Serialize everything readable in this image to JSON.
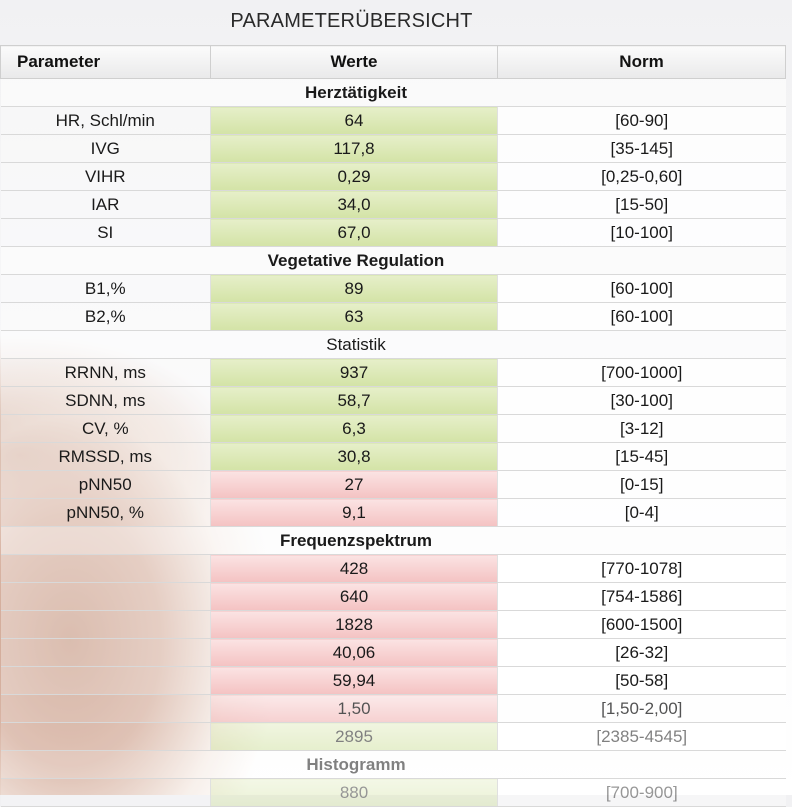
{
  "title": "PARAMETERÜBERSICHT",
  "header": {
    "param": "Parameter",
    "values": "Werte",
    "norm": "Norm"
  },
  "rows": [
    {
      "type": "section",
      "label": "Herztätigkeit"
    },
    {
      "type": "data",
      "name": "HR, Schl/min",
      "value": "64",
      "norm": "[60-90]",
      "status": "ok"
    },
    {
      "type": "data",
      "name": "IVG",
      "value": "117,8",
      "norm": "[35-145]",
      "status": "ok"
    },
    {
      "type": "data",
      "name": "VIHR",
      "value": "0,29",
      "norm": "[0,25-0,60]",
      "status": "ok"
    },
    {
      "type": "data",
      "name": "IAR",
      "value": "34,0",
      "norm": "[15-50]",
      "status": "ok"
    },
    {
      "type": "data",
      "name": "SI",
      "value": "67,0",
      "norm": "[10-100]",
      "status": "ok"
    },
    {
      "type": "section",
      "label": "Vegetative Regulation"
    },
    {
      "type": "data",
      "name": "B1,%",
      "value": "89",
      "norm": "[60-100]",
      "status": "ok"
    },
    {
      "type": "data",
      "name": "B2,%",
      "value": "63",
      "norm": "[60-100]",
      "status": "ok"
    },
    {
      "type": "section",
      "label": "Statistik",
      "light": true
    },
    {
      "type": "data",
      "name": "RRNN, ms",
      "value": "937",
      "norm": "[700-1000]",
      "status": "ok"
    },
    {
      "type": "data",
      "name": "SDNN, ms",
      "value": "58,7",
      "norm": "[30-100]",
      "status": "ok"
    },
    {
      "type": "data",
      "name": "CV, %",
      "value": "6,3",
      "norm": "[3-12]",
      "status": "ok"
    },
    {
      "type": "data",
      "name": "RMSSD, ms",
      "value": "30,8",
      "norm": "[15-45]",
      "status": "ok"
    },
    {
      "type": "data",
      "name": "pNN50",
      "value": "27",
      "norm": "[0-15]",
      "status": "bad"
    },
    {
      "type": "data",
      "name": "pNN50, %",
      "value": "9,1",
      "norm": "[0-4]",
      "status": "bad"
    },
    {
      "type": "section",
      "label": "Frequenzspektrum"
    },
    {
      "type": "data",
      "name": "",
      "value": "428",
      "norm": "[770-1078]",
      "status": "bad"
    },
    {
      "type": "data",
      "name": "",
      "value": "640",
      "norm": "[754-1586]",
      "status": "bad"
    },
    {
      "type": "data",
      "name": "",
      "value": "1828",
      "norm": "[600-1500]",
      "status": "bad"
    },
    {
      "type": "data",
      "name": "",
      "value": "40,06",
      "norm": "[26-32]",
      "status": "bad"
    },
    {
      "type": "data",
      "name": "",
      "value": "59,94",
      "norm": "[50-58]",
      "status": "bad"
    },
    {
      "type": "data",
      "name": "",
      "value": "1,50",
      "norm": "[1,50-2,00]",
      "status": "bad",
      "fade": 1
    },
    {
      "type": "data",
      "name": "",
      "value": "2895",
      "norm": "[2385-4545]",
      "status": "ok",
      "fade": 2
    },
    {
      "type": "section",
      "label": "Histogramm",
      "fade": 2
    },
    {
      "type": "data",
      "name": "",
      "value": "880",
      "norm": "[700-900]",
      "status": "ok",
      "fade": 3
    }
  ]
}
